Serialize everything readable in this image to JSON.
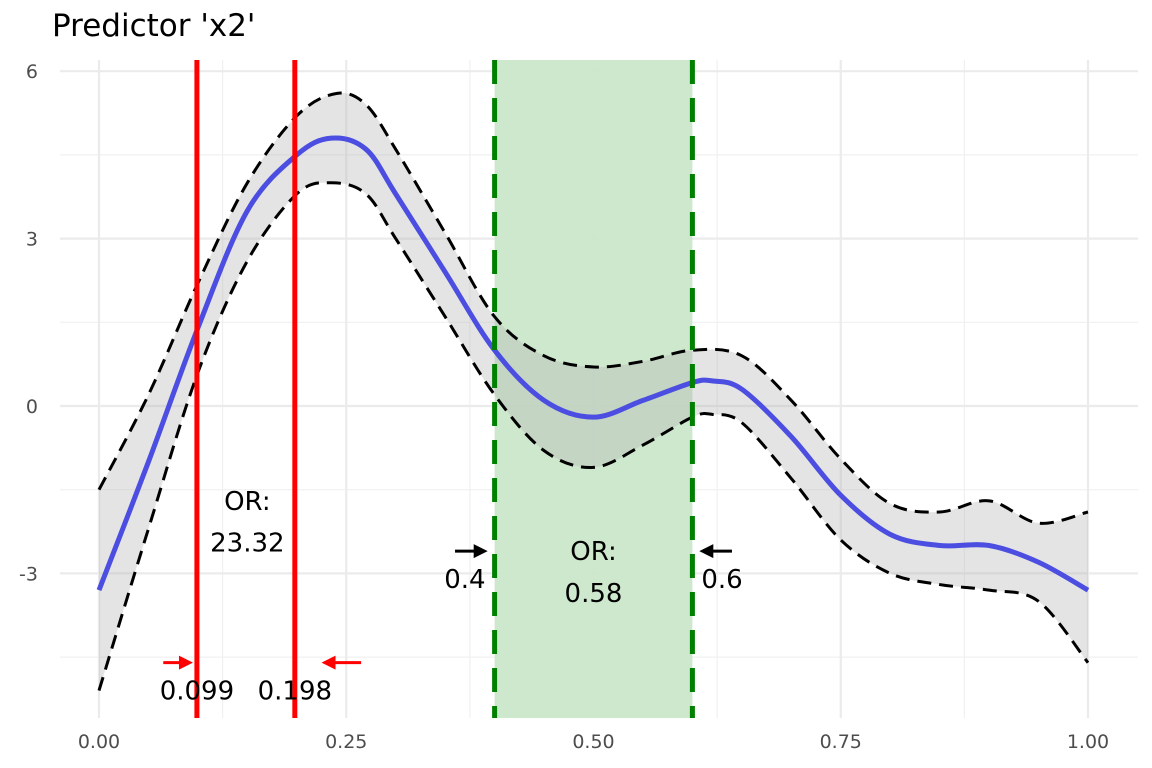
{
  "chart_data": {
    "type": "line",
    "title": "Predictor 'x2'",
    "xlabel": "",
    "ylabel": "",
    "xlim": [
      0,
      1
    ],
    "ylim": [
      -5.5,
      6.2
    ],
    "x_ticks": [
      0,
      0.25,
      0.5,
      0.75,
      1
    ],
    "x_tick_labels": [
      "0.00",
      "0.25",
      "0.50",
      "0.75",
      "1.00"
    ],
    "y_ticks": [
      -3,
      0,
      3,
      6
    ],
    "y_tick_labels": [
      "-3",
      "0",
      "3",
      "6"
    ],
    "grid": true,
    "colors": {
      "fit": "#4b4ee0",
      "band": "#e5e5e5",
      "bounds": "#000000",
      "red_lines": "#ff0000",
      "green_lines": "#008000",
      "green_region": "#cbe7cb"
    },
    "series": [
      {
        "role": "fit",
        "x": [
          0,
          0.05,
          0.1,
          0.15,
          0.2,
          0.235,
          0.27,
          0.3,
          0.35,
          0.4,
          0.45,
          0.5,
          0.55,
          0.6,
          0.62,
          0.65,
          0.7,
          0.75,
          0.8,
          0.85,
          0.9,
          0.95,
          1.0
        ],
        "values": [
          -3.3,
          -1.0,
          1.4,
          3.5,
          4.5,
          4.8,
          4.6,
          3.8,
          2.4,
          1.0,
          0.1,
          -0.2,
          0.1,
          0.42,
          0.45,
          0.3,
          -0.55,
          -1.6,
          -2.3,
          -2.5,
          -2.5,
          -2.8,
          -3.3
        ]
      },
      {
        "role": "upper",
        "x": [
          0,
          0.05,
          0.1,
          0.15,
          0.2,
          0.24,
          0.27,
          0.3,
          0.35,
          0.4,
          0.45,
          0.5,
          0.55,
          0.6,
          0.65,
          0.7,
          0.75,
          0.8,
          0.85,
          0.9,
          0.95,
          1.0
        ],
        "values": [
          -1.5,
          0.2,
          2.2,
          4.0,
          5.2,
          5.6,
          5.4,
          4.6,
          3.1,
          1.6,
          0.9,
          0.7,
          0.8,
          1.0,
          0.9,
          0.1,
          -0.95,
          -1.75,
          -1.9,
          -1.7,
          -2.1,
          -1.9
        ]
      },
      {
        "role": "lower",
        "x": [
          0,
          0.05,
          0.1,
          0.15,
          0.2,
          0.235,
          0.27,
          0.3,
          0.35,
          0.4,
          0.45,
          0.5,
          0.55,
          0.6,
          0.62,
          0.65,
          0.7,
          0.75,
          0.8,
          0.85,
          0.9,
          0.95,
          1.0
        ],
        "values": [
          -5.1,
          -2.2,
          0.6,
          2.6,
          3.8,
          4.0,
          3.8,
          3.0,
          1.6,
          0.2,
          -0.8,
          -1.1,
          -0.7,
          -0.2,
          -0.15,
          -0.3,
          -1.3,
          -2.4,
          -3.0,
          -3.2,
          -3.3,
          -3.5,
          -4.6
        ]
      }
    ],
    "red_lines": [
      0.099,
      0.198
    ],
    "green_lines": [
      0.4,
      0.6
    ],
    "shaded_region": [
      0.4,
      0.6
    ],
    "annotations": [
      {
        "role": "or-label",
        "text": "OR:",
        "x": 0.15,
        "y": -1.7
      },
      {
        "role": "or-value",
        "text": "23.32",
        "x": 0.15,
        "y": -2.45
      },
      {
        "role": "or-label",
        "text": "OR:",
        "x": 0.5,
        "y": -2.6
      },
      {
        "role": "or-value",
        "text": "0.58",
        "x": 0.5,
        "y": -3.35
      },
      {
        "role": "cut-value",
        "text": "0.099",
        "x": 0.099,
        "y": -5.1,
        "color": "#000000"
      },
      {
        "role": "cut-value",
        "text": "0.198",
        "x": 0.198,
        "y": -5.1,
        "color": "#000000"
      },
      {
        "role": "cut-value",
        "text": "0.4",
        "x": 0.37,
        "y": -3.1,
        "color": "#000000"
      },
      {
        "role": "cut-value",
        "text": "0.6",
        "x": 0.63,
        "y": -3.1,
        "color": "#000000"
      }
    ],
    "arrows": [
      {
        "x_from": 0.065,
        "x_to": 0.095,
        "y": -4.6,
        "color": "#ff0000"
      },
      {
        "x_from": 0.265,
        "x_to": 0.225,
        "y": -4.6,
        "color": "#ff0000"
      },
      {
        "x_from": 0.36,
        "x_to": 0.393,
        "y": -2.6,
        "color": "#000000"
      },
      {
        "x_from": 0.64,
        "x_to": 0.607,
        "y": -2.6,
        "color": "#000000"
      }
    ]
  }
}
